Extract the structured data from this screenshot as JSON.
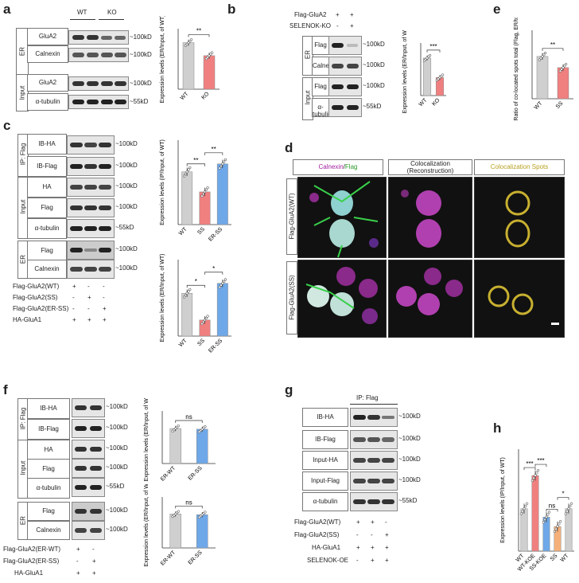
{
  "panels": {
    "a": {
      "label": "a",
      "groups": [
        "WT",
        "KO"
      ],
      "rows": [
        {
          "section": "ER",
          "name": "GluA2",
          "size": "~100kD"
        },
        {
          "section": "ER",
          "name": "Calnexin",
          "size": "~100kD"
        },
        {
          "section": "Input",
          "name": "GluA2",
          "size": "~100kD"
        },
        {
          "section": "Input",
          "name": "α-tubulin",
          "size": "~55kD"
        }
      ],
      "sections": [
        "ER",
        "Input"
      ]
    },
    "b": {
      "label": "b",
      "conditions": [
        {
          "name": "Flag-GluA2",
          "marks": [
            "+",
            "+"
          ]
        },
        {
          "name": "SELENOK-KO",
          "marks": [
            "-",
            "+"
          ]
        }
      ],
      "rows": [
        {
          "section": "ER",
          "name": "Flag",
          "size": "~100kD"
        },
        {
          "section": "ER",
          "name": "Calnexin",
          "size": "~100kD"
        },
        {
          "section": "Input",
          "name": "Flag",
          "size": "~100kD"
        },
        {
          "section": "Input",
          "name": "α-tubulin",
          "size": "~55kD"
        }
      ],
      "sections": [
        "ER",
        "Input"
      ]
    },
    "c": {
      "label": "c",
      "rows": [
        {
          "section": "IP: Flag",
          "name": "IB-HA",
          "size": "~100kD"
        },
        {
          "section": "IP: Flag",
          "name": "IB-Flag",
          "size": "~100kD"
        },
        {
          "section": "Input",
          "name": "HA",
          "size": "~100kD"
        },
        {
          "section": "Input",
          "name": "Flag",
          "size": "~100kD"
        },
        {
          "section": "Input",
          "name": "α-tubulin",
          "size": "~55kD"
        },
        {
          "section": "ER",
          "name": "Flag",
          "size": "~100kD"
        },
        {
          "section": "ER",
          "name": "Calnexin",
          "size": "~100kD"
        }
      ],
      "sections": [
        "IP: Flag",
        "Input",
        "ER"
      ],
      "conditions": [
        {
          "name": "Flag-GluA2(WT)",
          "marks": [
            "+",
            "-",
            "-"
          ]
        },
        {
          "name": "Flag-GluA2(SS)",
          "marks": [
            "-",
            "+",
            "-"
          ]
        },
        {
          "name": "Flag-GluA2(ER-SS)",
          "marks": [
            "-",
            "-",
            "+"
          ]
        },
        {
          "name": "HA-GluA1",
          "marks": [
            "+",
            "+",
            "+"
          ]
        }
      ]
    },
    "d": {
      "label": "d",
      "col_headers": [
        "Calnexin/Flag",
        "Colocalization (Reconstruction)",
        "Colocalization Spots"
      ],
      "calnexin": "Calnexin",
      "flag": "Flag",
      "coloc_line1": "Colocalization",
      "coloc_line2": "(Reconstruction)",
      "spots": "Colocalization Spots",
      "row_labels": [
        "Flag-GluA2(WT)",
        "Flag-GluA2(SS)"
      ]
    },
    "e": {
      "label": "e"
    },
    "f": {
      "label": "f",
      "rows": [
        {
          "section": "IP: Flag",
          "name": "IB-HA",
          "size": "~100kD"
        },
        {
          "section": "IP: Flag",
          "name": "IB-Flag",
          "size": "~100kD"
        },
        {
          "section": "Input",
          "name": "HA",
          "size": "~100kD"
        },
        {
          "section": "Input",
          "name": "Flag",
          "size": "~100kD"
        },
        {
          "section": "Input",
          "name": "α-tubulin",
          "size": "~55kD"
        },
        {
          "section": "ER",
          "name": "Flag",
          "size": "~100kD"
        },
        {
          "section": "ER",
          "name": "Calnexin",
          "size": "~100kD"
        }
      ],
      "sections": [
        "IP: Flag",
        "Input",
        "ER"
      ],
      "conditions": [
        {
          "name": "Flag-GluA2(ER-WT)",
          "marks": [
            "+",
            "-"
          ]
        },
        {
          "name": "Flag-GluA2(ER-SS)",
          "marks": [
            "-",
            "+"
          ]
        },
        {
          "name": "HA-GluA1",
          "marks": [
            "+",
            "+"
          ]
        }
      ]
    },
    "g": {
      "label": "g",
      "header": "IP:  Flag",
      "rows": [
        {
          "name": "IB-HA",
          "size": "~100kD"
        },
        {
          "name": "IB-Flag",
          "size": "~100kD"
        },
        {
          "name": "Input-HA",
          "size": "~100kD"
        },
        {
          "name": "Input-Flag",
          "size": "~100kD"
        },
        {
          "name": "α-tubulin",
          "size": "~55kD"
        }
      ],
      "conditions": [
        {
          "name": "Flag-GluA2(WT)",
          "marks": [
            "+",
            "+",
            "-"
          ]
        },
        {
          "name": "Flag-GluA2(SS)",
          "marks": [
            "-",
            "-",
            "+"
          ]
        },
        {
          "name": "HA-GluA1",
          "marks": [
            "+",
            "+",
            "+"
          ]
        },
        {
          "name": "SELENOK-OE",
          "marks": [
            "-",
            "+",
            "+"
          ]
        }
      ]
    },
    "h": {
      "label": "h"
    }
  },
  "chart_data": [
    {
      "id": "a",
      "type": "bar",
      "categories": [
        "WT",
        "KO"
      ],
      "values": [
        1.0,
        0.72
      ],
      "colors": [
        "#cfcfcf",
        "#f08080"
      ],
      "ylabel": "Expression levels (ER/Input, of WT)",
      "ylim": [
        0,
        1.3
      ],
      "sig": [
        {
          "from": 0,
          "to": 1,
          "text": "**"
        }
      ]
    },
    {
      "id": "b",
      "type": "bar",
      "categories": [
        "WT",
        "KO"
      ],
      "values": [
        1.0,
        0.48
      ],
      "colors": [
        "#cfcfcf",
        "#f08080"
      ],
      "ylabel": "Expression levels (ER/Input, of WT)",
      "ylim": [
        0,
        1.4
      ],
      "sig": [
        {
          "from": 0,
          "to": 1,
          "text": "***"
        }
      ]
    },
    {
      "id": "e",
      "type": "bar",
      "categories": [
        "WT",
        "SS"
      ],
      "values": [
        0.34,
        0.25
      ],
      "colors": [
        "#cfcfcf",
        "#f08080"
      ],
      "ylabel": "Ratio of co-located spots total (Flag, ER/total)",
      "ylim": [
        0,
        0.55
      ],
      "sig": [
        {
          "from": 0,
          "to": 1,
          "text": "**"
        }
      ]
    },
    {
      "id": "c1",
      "type": "bar",
      "categories": [
        "WT",
        "SS",
        "ER-SS"
      ],
      "values": [
        1.0,
        0.62,
        1.15
      ],
      "colors": [
        "#cfcfcf",
        "#f08080",
        "#6fa8e8"
      ],
      "ylabel": "Expression levels (IP/Input, of WT)",
      "ylim": [
        0,
        1.6
      ],
      "sig": [
        {
          "from": 0,
          "to": 1,
          "text": "**"
        },
        {
          "from": 1,
          "to": 2,
          "text": "**"
        }
      ]
    },
    {
      "id": "c2",
      "type": "bar",
      "categories": [
        "WT",
        "SS",
        "ER-SS"
      ],
      "values": [
        1.12,
        0.42,
        1.38
      ],
      "colors": [
        "#cfcfcf",
        "#f08080",
        "#6fa8e8"
      ],
      "ylabel": "Expression levels (ER/Input, of WT)",
      "ylim": [
        0,
        2.0
      ],
      "sig": [
        {
          "from": 0,
          "to": 1,
          "text": "*"
        },
        {
          "from": 1,
          "to": 2,
          "text": "*"
        }
      ]
    },
    {
      "id": "f1",
      "type": "bar",
      "categories": [
        "ER-WT",
        "ER-SS"
      ],
      "values": [
        1.0,
        0.98
      ],
      "colors": [
        "#cfcfcf",
        "#6fa8e8"
      ],
      "ylabel": "Expression levels (ER/Input, of WT)",
      "ylim": [
        0,
        1.5
      ],
      "sig": [
        {
          "from": 0,
          "to": 1,
          "text": "ns"
        }
      ]
    },
    {
      "id": "f2",
      "type": "bar",
      "categories": [
        "ER-WT",
        "ER-SS"
      ],
      "values": [
        1.0,
        0.98
      ],
      "colors": [
        "#cfcfcf",
        "#6fa8e8"
      ],
      "ylabel": "Expression levels (ER/Input, of WT)",
      "ylim": [
        0,
        1.5
      ],
      "sig": [
        {
          "from": 0,
          "to": 1,
          "text": "ns"
        }
      ]
    },
    {
      "id": "h",
      "type": "bar",
      "categories": [
        "WT",
        "WT-KOE",
        "SS-KOE",
        "SS",
        "WT"
      ],
      "values": [
        1.0,
        1.78,
        0.8,
        0.58,
        1.0
      ],
      "colors": [
        "#cfcfcf",
        "#f08080",
        "#6fa8e8",
        "#f5b07a",
        "#cfcfcf"
      ],
      "ylabel": "Expression levels (IP/Input, of WT)",
      "ylim": [
        0,
        2.4
      ],
      "sig": [
        {
          "from": 0,
          "to": 1,
          "text": "***"
        },
        {
          "from": 1,
          "to": 2,
          "text": "***"
        },
        {
          "from": 2,
          "to": 3,
          "text": "ns"
        },
        {
          "from": 3,
          "to": 4,
          "text": "*"
        }
      ]
    }
  ]
}
